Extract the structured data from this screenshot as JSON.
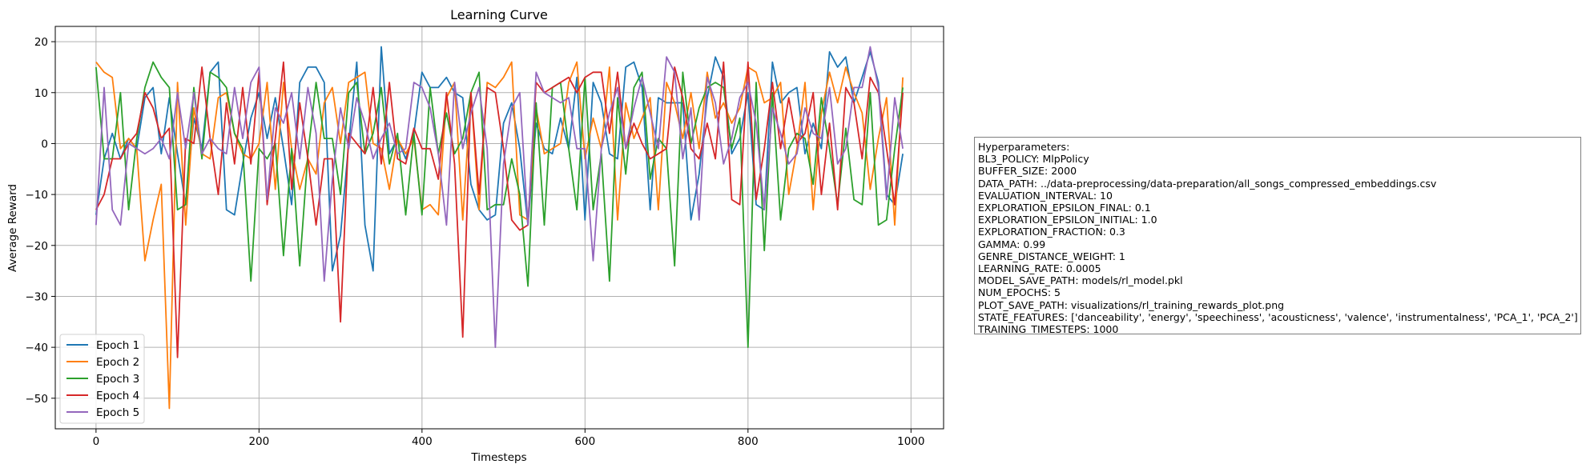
{
  "chart_data": {
    "type": "line",
    "title": "Learning Curve",
    "xlabel": "Timesteps",
    "ylabel": "Average Reward",
    "xlim": [
      -50,
      1040
    ],
    "ylim": [
      -56,
      23
    ],
    "xticks": [
      0,
      200,
      400,
      600,
      800,
      1000
    ],
    "yticks": [
      -50,
      -40,
      -30,
      -20,
      -10,
      0,
      10,
      20
    ],
    "grid": true,
    "legend_position": "lower-left",
    "x": [
      0,
      10,
      20,
      30,
      40,
      50,
      60,
      70,
      80,
      90,
      100,
      110,
      120,
      130,
      140,
      150,
      160,
      170,
      180,
      190,
      200,
      210,
      220,
      230,
      240,
      250,
      260,
      270,
      280,
      290,
      300,
      310,
      320,
      330,
      340,
      350,
      360,
      370,
      380,
      390,
      400,
      410,
      420,
      430,
      440,
      450,
      460,
      470,
      480,
      490,
      500,
      510,
      520,
      530,
      540,
      550,
      560,
      570,
      580,
      590,
      600,
      610,
      620,
      630,
      640,
      650,
      660,
      670,
      680,
      690,
      700,
      710,
      720,
      730,
      740,
      750,
      760,
      770,
      780,
      790,
      800,
      810,
      820,
      830,
      840,
      850,
      860,
      870,
      880,
      890,
      900,
      910,
      920,
      930,
      940,
      950,
      960,
      970,
      980,
      990
    ],
    "series": [
      {
        "name": "Epoch 1",
        "color": "#1f77b4",
        "values": [
          -14,
          -3,
          2,
          -3,
          1,
          -1,
          9,
          11,
          -2,
          9,
          -2,
          -12,
          5,
          -1,
          14,
          16,
          -13,
          -14,
          -4,
          5,
          10,
          1,
          9,
          -1,
          -12,
          12,
          15,
          15,
          12,
          -25,
          -18,
          0,
          16,
          -16,
          -25,
          19,
          -2,
          1,
          -3,
          2,
          14,
          11,
          11,
          13,
          10,
          9,
          -8,
          -13,
          -15,
          -14,
          4,
          8,
          -1,
          -16,
          4,
          -1,
          -2,
          5,
          -1,
          13,
          -15,
          12,
          8,
          -2,
          -3,
          15,
          16,
          11,
          -13,
          9,
          8,
          8,
          8,
          -15,
          -6,
          9,
          17,
          13,
          -2,
          1,
          10,
          -12,
          -13,
          16,
          8,
          10,
          11,
          -2,
          4,
          -1,
          18,
          15,
          17,
          8,
          13,
          18,
          12,
          -10,
          -12,
          -2
        ]
      },
      {
        "name": "Epoch 2",
        "color": "#ff7f0e",
        "values": [
          16,
          14,
          13,
          -1,
          1,
          -1,
          -23,
          -15,
          -8,
          -52,
          12,
          -16,
          7,
          -2,
          -3,
          9,
          10,
          2,
          -2,
          -3,
          0,
          12,
          -9,
          12,
          -1,
          -9,
          -3,
          -6,
          8,
          11,
          0,
          12,
          13,
          14,
          0,
          -1,
          -9,
          1,
          -2,
          1,
          -13,
          -12,
          -14,
          9,
          12,
          -15,
          10,
          -13,
          12,
          11,
          13,
          16,
          -14,
          -15,
          7,
          -2,
          -1,
          0,
          12,
          16,
          -3,
          5,
          -1,
          15,
          -15,
          8,
          1,
          5,
          9,
          -13,
          12,
          8,
          1,
          10,
          -1,
          14,
          5,
          8,
          4,
          7,
          15,
          14,
          8,
          9,
          12,
          -10,
          -1,
          12,
          -13,
          6,
          14,
          8,
          15,
          10,
          6,
          -9,
          1,
          9,
          -16,
          13
        ]
      },
      {
        "name": "Epoch 3",
        "color": "#2ca02c",
        "values": [
          15,
          -3,
          -3,
          10,
          -13,
          1,
          11,
          16,
          13,
          11,
          -13,
          -12,
          11,
          -3,
          14,
          13,
          11,
          2,
          -1,
          -27,
          -1,
          -3,
          0,
          -22,
          -1,
          -24,
          -2,
          12,
          1,
          1,
          -10,
          10,
          12,
          -2,
          2,
          11,
          -4,
          2,
          -14,
          2,
          -14,
          11,
          -2,
          6,
          -2,
          1,
          10,
          14,
          -13,
          -12,
          -12,
          -3,
          -10,
          -28,
          8,
          -16,
          11,
          12,
          -1,
          -13,
          13,
          -13,
          -2,
          -27,
          9,
          -6,
          11,
          14,
          -7,
          1,
          -1,
          -24,
          14,
          0,
          7,
          11,
          12,
          11,
          -1,
          5,
          -40,
          12,
          -21,
          10,
          -15,
          -1,
          2,
          1,
          -8,
          9,
          -1,
          -12,
          3,
          -11,
          -12,
          10,
          -16,
          -15,
          -1,
          11
        ]
      },
      {
        "name": "Epoch 4",
        "color": "#d62728",
        "values": [
          -13,
          -10,
          -3,
          -3,
          0,
          2,
          10,
          7,
          1,
          3,
          -42,
          1,
          0,
          15,
          1,
          -10,
          8,
          -4,
          11,
          -4,
          14,
          -12,
          1,
          16,
          -9,
          8,
          -3,
          -16,
          -3,
          -3,
          -35,
          2,
          0,
          -2,
          11,
          -4,
          12,
          -3,
          -4,
          3,
          -1,
          -1,
          -7,
          10,
          -4,
          -38,
          10,
          -10,
          11,
          10,
          -1,
          -15,
          -17,
          -16,
          12,
          10,
          11,
          12,
          13,
          10,
          13,
          14,
          14,
          2,
          14,
          -1,
          4,
          0,
          -3,
          -2,
          -1,
          15,
          9,
          -1,
          -3,
          4,
          -3,
          16,
          -11,
          -12,
          16,
          -11,
          -1,
          12,
          -1,
          9,
          0,
          2,
          10,
          -10,
          4,
          -13,
          11,
          8,
          -3,
          13,
          10,
          -1,
          -12,
          10
        ]
      },
      {
        "name": "Epoch 5",
        "color": "#9467bd",
        "values": [
          -16,
          11,
          -13,
          -16,
          0,
          -1,
          -2,
          -1,
          1,
          -3,
          10,
          -1,
          10,
          -2,
          1,
          -1,
          -2,
          11,
          1,
          12,
          15,
          -11,
          7,
          4,
          10,
          -3,
          11,
          2,
          -27,
          -7,
          7,
          -1,
          9,
          4,
          -3,
          1,
          4,
          -2,
          -1,
          12,
          11,
          7,
          -2,
          -16,
          12,
          -1,
          6,
          11,
          -1,
          -40,
          -4,
          7,
          10,
          -16,
          14,
          10,
          9,
          8,
          9,
          -1,
          -1,
          -23,
          -1,
          6,
          11,
          -1,
          7,
          13,
          6,
          -1,
          17,
          14,
          -3,
          7,
          -15,
          13,
          8,
          -4,
          1,
          9,
          12,
          4,
          -13,
          7,
          2,
          -4,
          -2,
          7,
          2,
          1,
          11,
          -4,
          -1,
          11,
          11,
          19,
          11,
          -11,
          9,
          -1
        ]
      }
    ]
  },
  "hyperparameters": {
    "lines": [
      "Hyperparameters:",
      "BL3_POLICY: MlpPolicy",
      "BUFFER_SIZE: 2000",
      "DATA_PATH: ../data-preprocessing/data-preparation/all_songs_compressed_embeddings.csv",
      "EVALUATION_INTERVAL: 10",
      "EXPLORATION_EPSILON_FINAL: 0.1",
      "EXPLORATION_EPSILON_INITIAL: 1.0",
      "EXPLORATION_FRACTION: 0.3",
      "GAMMA: 0.99",
      "GENRE_DISTANCE_WEIGHT: 1",
      "LEARNING_RATE: 0.0005",
      "MODEL_SAVE_PATH: models/rl_model.pkl",
      "NUM_EPOCHS: 5",
      "PLOT_SAVE_PATH: visualizations/rl_training_rewards_plot.png",
      "STATE_FEATURES: ['danceability', 'energy', 'speechiness', 'acousticness', 'valence', 'instrumentalness', 'PCA_1', 'PCA_2']",
      "TRAINING_TIMESTEPS: 1000"
    ]
  }
}
